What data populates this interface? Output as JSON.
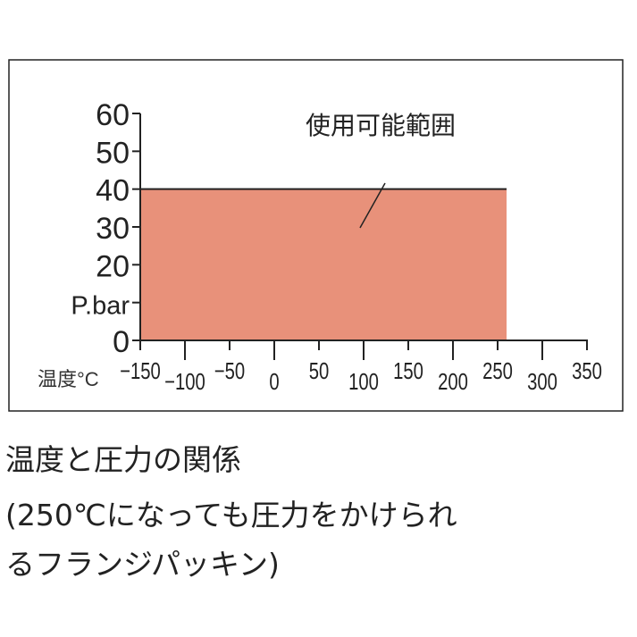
{
  "chart_data": {
    "type": "area",
    "xlabel": "温度°C",
    "ylabel": "P.bar",
    "xlim": [
      -150,
      350
    ],
    "ylim": [
      0,
      60
    ],
    "x_ticks": [
      "-150",
      "-100",
      "-50",
      "0",
      "50",
      "100",
      "150",
      "200",
      "250",
      "300",
      "350"
    ],
    "y_ticks": [
      "0",
      "20",
      "30",
      "40",
      "50",
      "60"
    ],
    "series": [
      {
        "x": [
          -150,
          260
        ],
        "y": [
          40,
          40
        ]
      }
    ],
    "annotation": "使用可能範囲",
    "fill_color": "#E8917A",
    "grid": false
  },
  "caption": {
    "line1": "温度と圧力の関係",
    "line2": "(250℃になっても圧力をかけられ",
    "line3": "るフランジパッキン)"
  }
}
